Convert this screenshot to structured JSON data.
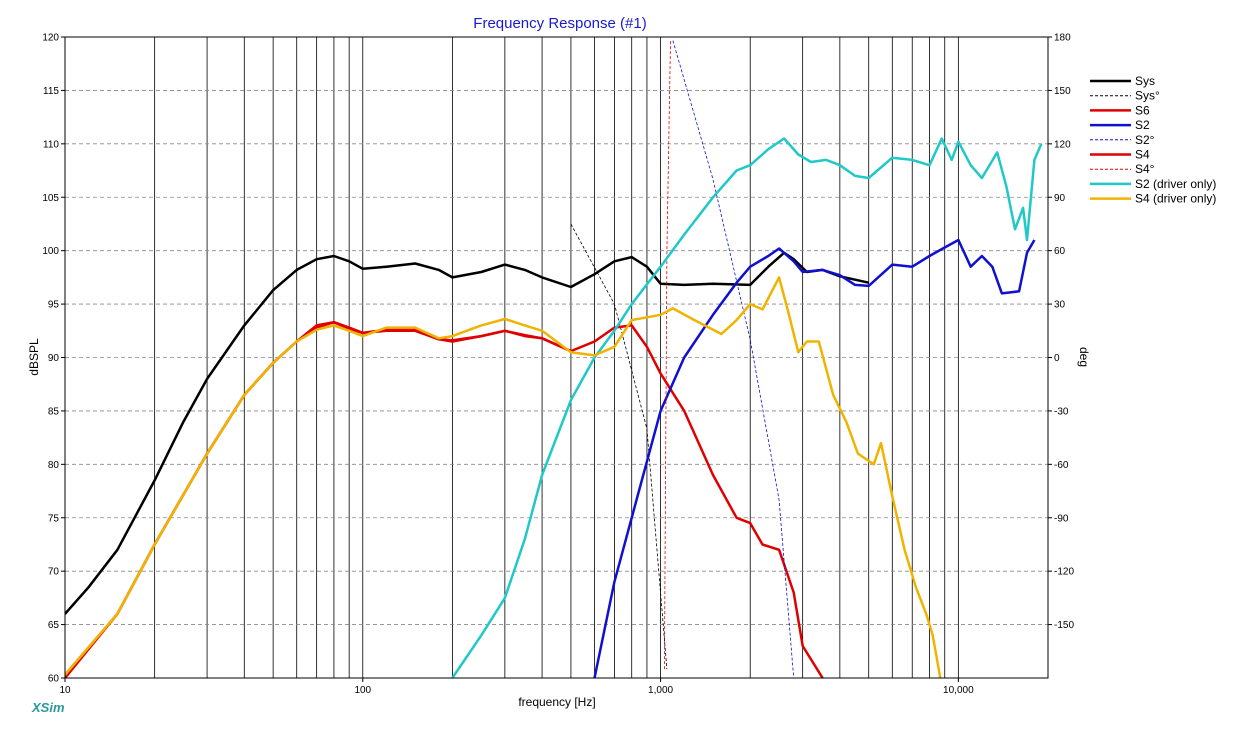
{
  "chart_data": {
    "type": "line",
    "title": "Frequency Response (#1)",
    "xlabel": "frequency [Hz]",
    "ylabel": "dBSPL",
    "y2label": "deg",
    "x_scale": "log",
    "xlim": [
      10,
      20000
    ],
    "ylim": [
      60,
      120
    ],
    "y2lim": [
      -180,
      180
    ],
    "x_tick_labels": [
      {
        "value": 10,
        "label": "10"
      },
      {
        "value": 100,
        "label": "100"
      },
      {
        "value": 1000,
        "label": "1,000"
      },
      {
        "value": 10000,
        "label": "10,000"
      }
    ],
    "y_ticks": [
      60,
      65,
      70,
      75,
      80,
      85,
      90,
      95,
      100,
      105,
      110,
      115,
      120
    ],
    "y2_ticks": [
      -150,
      -120,
      -90,
      -60,
      -30,
      0,
      30,
      60,
      90,
      120,
      150,
      180
    ],
    "grid": true,
    "legend_position": "right",
    "brand": "XSim",
    "series": [
      {
        "name": "Sys",
        "axis": "left",
        "color": "#000000",
        "style": "solid",
        "width": 2.5,
        "points": [
          [
            10,
            66
          ],
          [
            12,
            68.5
          ],
          [
            15,
            72
          ],
          [
            20,
            78.5
          ],
          [
            25,
            84
          ],
          [
            30,
            88
          ],
          [
            40,
            93
          ],
          [
            50,
            96.3
          ],
          [
            60,
            98.2
          ],
          [
            70,
            99.2
          ],
          [
            80,
            99.5
          ],
          [
            90,
            99
          ],
          [
            100,
            98.3
          ],
          [
            120,
            98.5
          ],
          [
            150,
            98.8
          ],
          [
            180,
            98.2
          ],
          [
            200,
            97.5
          ],
          [
            250,
            98
          ],
          [
            300,
            98.7
          ],
          [
            350,
            98.2
          ],
          [
            400,
            97.5
          ],
          [
            500,
            96.6
          ],
          [
            600,
            97.8
          ],
          [
            700,
            99
          ],
          [
            800,
            99.4
          ],
          [
            900,
            98.5
          ],
          [
            1000,
            96.9
          ],
          [
            1200,
            96.8
          ],
          [
            1500,
            96.9
          ],
          [
            2000,
            96.8
          ],
          [
            2300,
            98.5
          ],
          [
            2600,
            99.8
          ],
          [
            2800,
            99.2
          ],
          [
            3100,
            98
          ],
          [
            3500,
            98.2
          ],
          [
            4000,
            97.6
          ],
          [
            5000,
            97
          ]
        ]
      },
      {
        "name": "Sys°",
        "axis": "right",
        "color": "#000000",
        "style": "dashed",
        "width": 0.8,
        "points": [
          [
            500,
            75
          ],
          [
            700,
            30
          ],
          [
            900,
            -40
          ],
          [
            1050,
            -175
          ]
        ]
      },
      {
        "name": "S6",
        "axis": "left",
        "color": "#e00000",
        "style": "solid",
        "width": 2.5,
        "points": [
          [
            10,
            60
          ],
          [
            15,
            66
          ],
          [
            20,
            72.5
          ],
          [
            30,
            81
          ],
          [
            40,
            86.5
          ],
          [
            50,
            89.5
          ],
          [
            60,
            91.5
          ],
          [
            70,
            93
          ],
          [
            80,
            93.3
          ],
          [
            90,
            92.8
          ],
          [
            100,
            92.3
          ],
          [
            120,
            92.5
          ],
          [
            150,
            92.5
          ],
          [
            180,
            91.7
          ],
          [
            200,
            91.5
          ],
          [
            250,
            92
          ],
          [
            300,
            92.5
          ],
          [
            350,
            92
          ],
          [
            400,
            91.8
          ],
          [
            500,
            90.6
          ],
          [
            600,
            91.5
          ],
          [
            700,
            92.8
          ],
          [
            800,
            93
          ],
          [
            900,
            91
          ],
          [
            1000,
            88.5
          ],
          [
            1200,
            85
          ],
          [
            1500,
            79
          ],
          [
            1800,
            75
          ],
          [
            2000,
            74.5
          ],
          [
            2200,
            72.5
          ],
          [
            2500,
            72
          ],
          [
            2800,
            68
          ],
          [
            3000,
            63
          ],
          [
            3500,
            60
          ]
        ]
      },
      {
        "name": "S2",
        "axis": "left",
        "color": "#1010d0",
        "style": "solid",
        "width": 2.5,
        "points": [
          [
            600,
            60
          ],
          [
            700,
            69
          ],
          [
            800,
            75
          ],
          [
            1000,
            85
          ],
          [
            1200,
            90
          ],
          [
            1500,
            94
          ],
          [
            1800,
            97
          ],
          [
            2000,
            98.5
          ],
          [
            2300,
            99.5
          ],
          [
            2500,
            100.2
          ],
          [
            2800,
            99
          ],
          [
            3000,
            98
          ],
          [
            3500,
            98.2
          ],
          [
            4000,
            97.7
          ],
          [
            4500,
            96.8
          ],
          [
            5000,
            96.7
          ],
          [
            6000,
            98.7
          ],
          [
            7000,
            98.5
          ],
          [
            8000,
            99.5
          ],
          [
            9000,
            100.3
          ],
          [
            10000,
            101
          ],
          [
            11000,
            98.5
          ],
          [
            12000,
            99.5
          ],
          [
            13000,
            98.5
          ],
          [
            14000,
            96
          ],
          [
            16000,
            96.2
          ],
          [
            17000,
            99.8
          ],
          [
            18000,
            101
          ]
        ]
      },
      {
        "name": "S2°",
        "axis": "right",
        "color": "#1010d0",
        "style": "dashed",
        "width": 0.8,
        "points": [
          [
            1100,
            178
          ],
          [
            1500,
            100
          ],
          [
            2000,
            10
          ],
          [
            2500,
            -80
          ],
          [
            2800,
            -180
          ]
        ]
      },
      {
        "name": "S4",
        "axis": "left",
        "color": "#e00000",
        "style": "solid",
        "width": 2.5,
        "points": [
          [
            10,
            60.3
          ],
          [
            15,
            66
          ],
          [
            20,
            72.5
          ],
          [
            30,
            81
          ],
          [
            40,
            86.5
          ],
          [
            50,
            89.5
          ],
          [
            60,
            91.5
          ],
          [
            70,
            92.8
          ],
          [
            80,
            93.3
          ],
          [
            90,
            92.7
          ],
          [
            100,
            92.3
          ],
          [
            120,
            92.6
          ],
          [
            150,
            92.6
          ],
          [
            180,
            91.7
          ],
          [
            200,
            91.6
          ],
          [
            250,
            92
          ],
          [
            300,
            92.5
          ],
          [
            350,
            92.1
          ],
          [
            400,
            91.8
          ],
          [
            500,
            90.6
          ]
        ]
      },
      {
        "name": "S4°",
        "axis": "right",
        "color": "#e00000",
        "style": "dashed",
        "width": 0.8,
        "points": [
          [
            1030,
            -175
          ],
          [
            1050,
            60
          ],
          [
            1080,
            178
          ]
        ]
      },
      {
        "name": "S2 (driver only)",
        "axis": "left",
        "color": "#20c8c8",
        "style": "solid",
        "width": 2.5,
        "points": [
          [
            200,
            60
          ],
          [
            250,
            64
          ],
          [
            300,
            67.5
          ],
          [
            350,
            73
          ],
          [
            400,
            79
          ],
          [
            500,
            86
          ],
          [
            600,
            90
          ],
          [
            700,
            92.5
          ],
          [
            800,
            95
          ],
          [
            1000,
            98.5
          ],
          [
            1200,
            101.5
          ],
          [
            1500,
            105
          ],
          [
            1800,
            107.5
          ],
          [
            2000,
            108
          ],
          [
            2300,
            109.5
          ],
          [
            2600,
            110.5
          ],
          [
            2900,
            109
          ],
          [
            3200,
            108.3
          ],
          [
            3600,
            108.5
          ],
          [
            4000,
            108
          ],
          [
            4500,
            107
          ],
          [
            5000,
            106.8
          ],
          [
            6000,
            108.7
          ],
          [
            7000,
            108.5
          ],
          [
            8000,
            108
          ],
          [
            8800,
            110.5
          ],
          [
            9500,
            108.5
          ],
          [
            10000,
            110.2
          ],
          [
            11000,
            108
          ],
          [
            12000,
            106.8
          ],
          [
            13500,
            109.2
          ],
          [
            14500,
            106
          ],
          [
            15500,
            102
          ],
          [
            16500,
            104
          ],
          [
            17000,
            101
          ],
          [
            18000,
            108.5
          ],
          [
            19000,
            110
          ]
        ]
      },
      {
        "name": "S4 (driver only)",
        "axis": "left",
        "color": "#f0b400",
        "style": "solid",
        "width": 2.5,
        "points": [
          [
            10,
            60.3
          ],
          [
            15,
            66
          ],
          [
            20,
            72.5
          ],
          [
            30,
            81
          ],
          [
            40,
            86.5
          ],
          [
            50,
            89.5
          ],
          [
            60,
            91.5
          ],
          [
            70,
            92.6
          ],
          [
            80,
            93
          ],
          [
            90,
            92.5
          ],
          [
            100,
            92
          ],
          [
            120,
            92.8
          ],
          [
            150,
            92.8
          ],
          [
            180,
            91.8
          ],
          [
            200,
            92
          ],
          [
            250,
            93
          ],
          [
            300,
            93.6
          ],
          [
            350,
            93
          ],
          [
            400,
            92.5
          ],
          [
            500,
            90.5
          ],
          [
            600,
            90.2
          ],
          [
            700,
            91
          ],
          [
            800,
            93.5
          ],
          [
            1000,
            94
          ],
          [
            1100,
            94.6
          ],
          [
            1300,
            93.5
          ],
          [
            1600,
            92.2
          ],
          [
            1800,
            93.5
          ],
          [
            2000,
            95
          ],
          [
            2200,
            94.5
          ],
          [
            2500,
            97.5
          ],
          [
            2700,
            94
          ],
          [
            2900,
            90.5
          ],
          [
            3100,
            91.5
          ],
          [
            3400,
            91.5
          ],
          [
            3800,
            86.5
          ],
          [
            4200,
            84
          ],
          [
            4600,
            81
          ],
          [
            5200,
            80
          ],
          [
            5500,
            82
          ],
          [
            6000,
            77
          ],
          [
            6600,
            72
          ],
          [
            7200,
            68.5
          ],
          [
            7800,
            66
          ],
          [
            8200,
            64
          ],
          [
            8700,
            60
          ]
        ]
      }
    ]
  }
}
